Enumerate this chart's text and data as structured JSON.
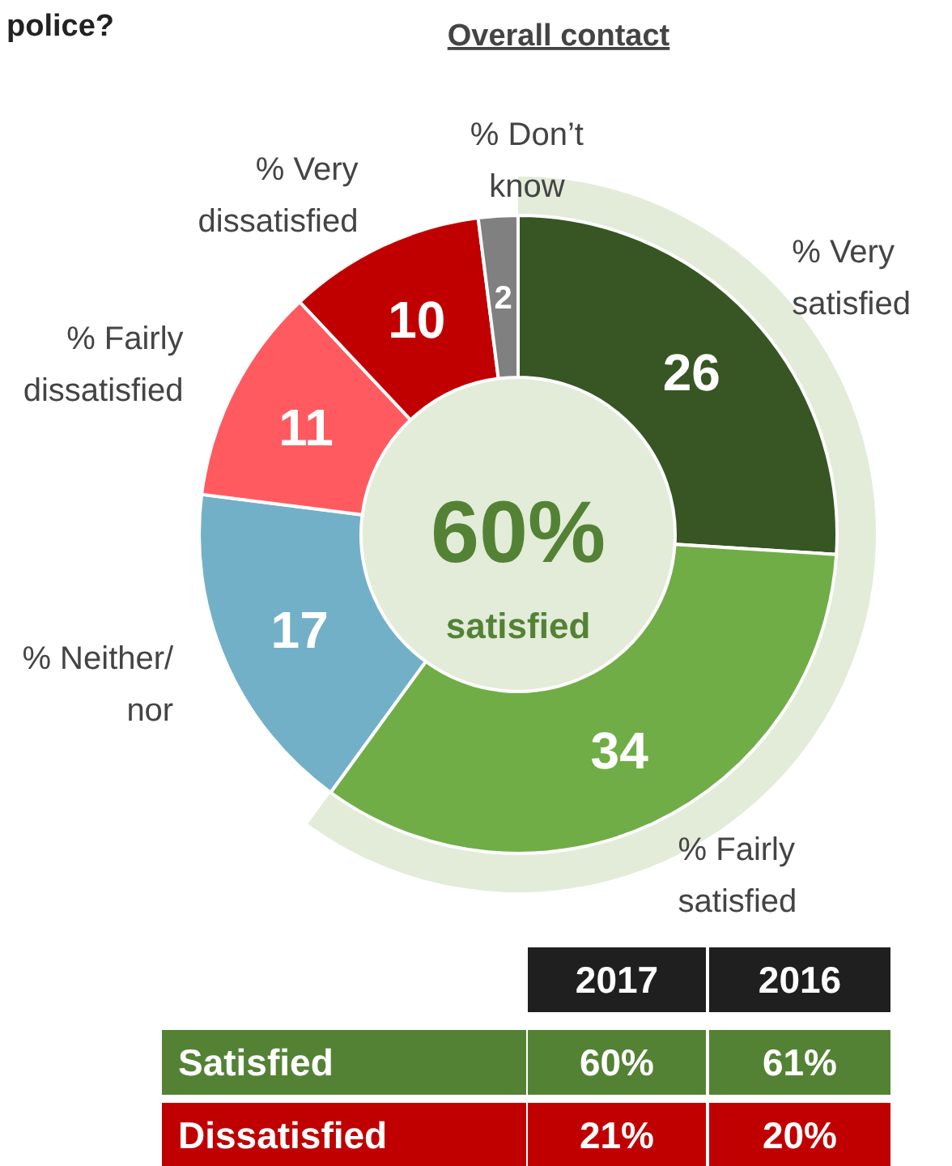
{
  "chart_data": {
    "type": "donut",
    "title": "police?",
    "subtitle": "Overall contact",
    "categories": [
      "% Very satisfied",
      "% Fairly satisfied",
      "% Neither/ nor",
      "% Fairly dissatisfied",
      "% Very dissatisfied",
      "% Don’t know"
    ],
    "values": [
      26,
      34,
      17,
      11,
      10,
      2
    ],
    "colors": [
      "#375623",
      "#70ad47",
      "#72b0c8",
      "#ff5a5f",
      "#c00000",
      "#808080"
    ],
    "data_labels": true,
    "annotations": [
      "60%",
      "satisfied",
      "2017",
      "2016",
      "Satisfied",
      "60%",
      "61%",
      "Dissatisfied",
      "21%",
      "20%"
    ]
  }
}
